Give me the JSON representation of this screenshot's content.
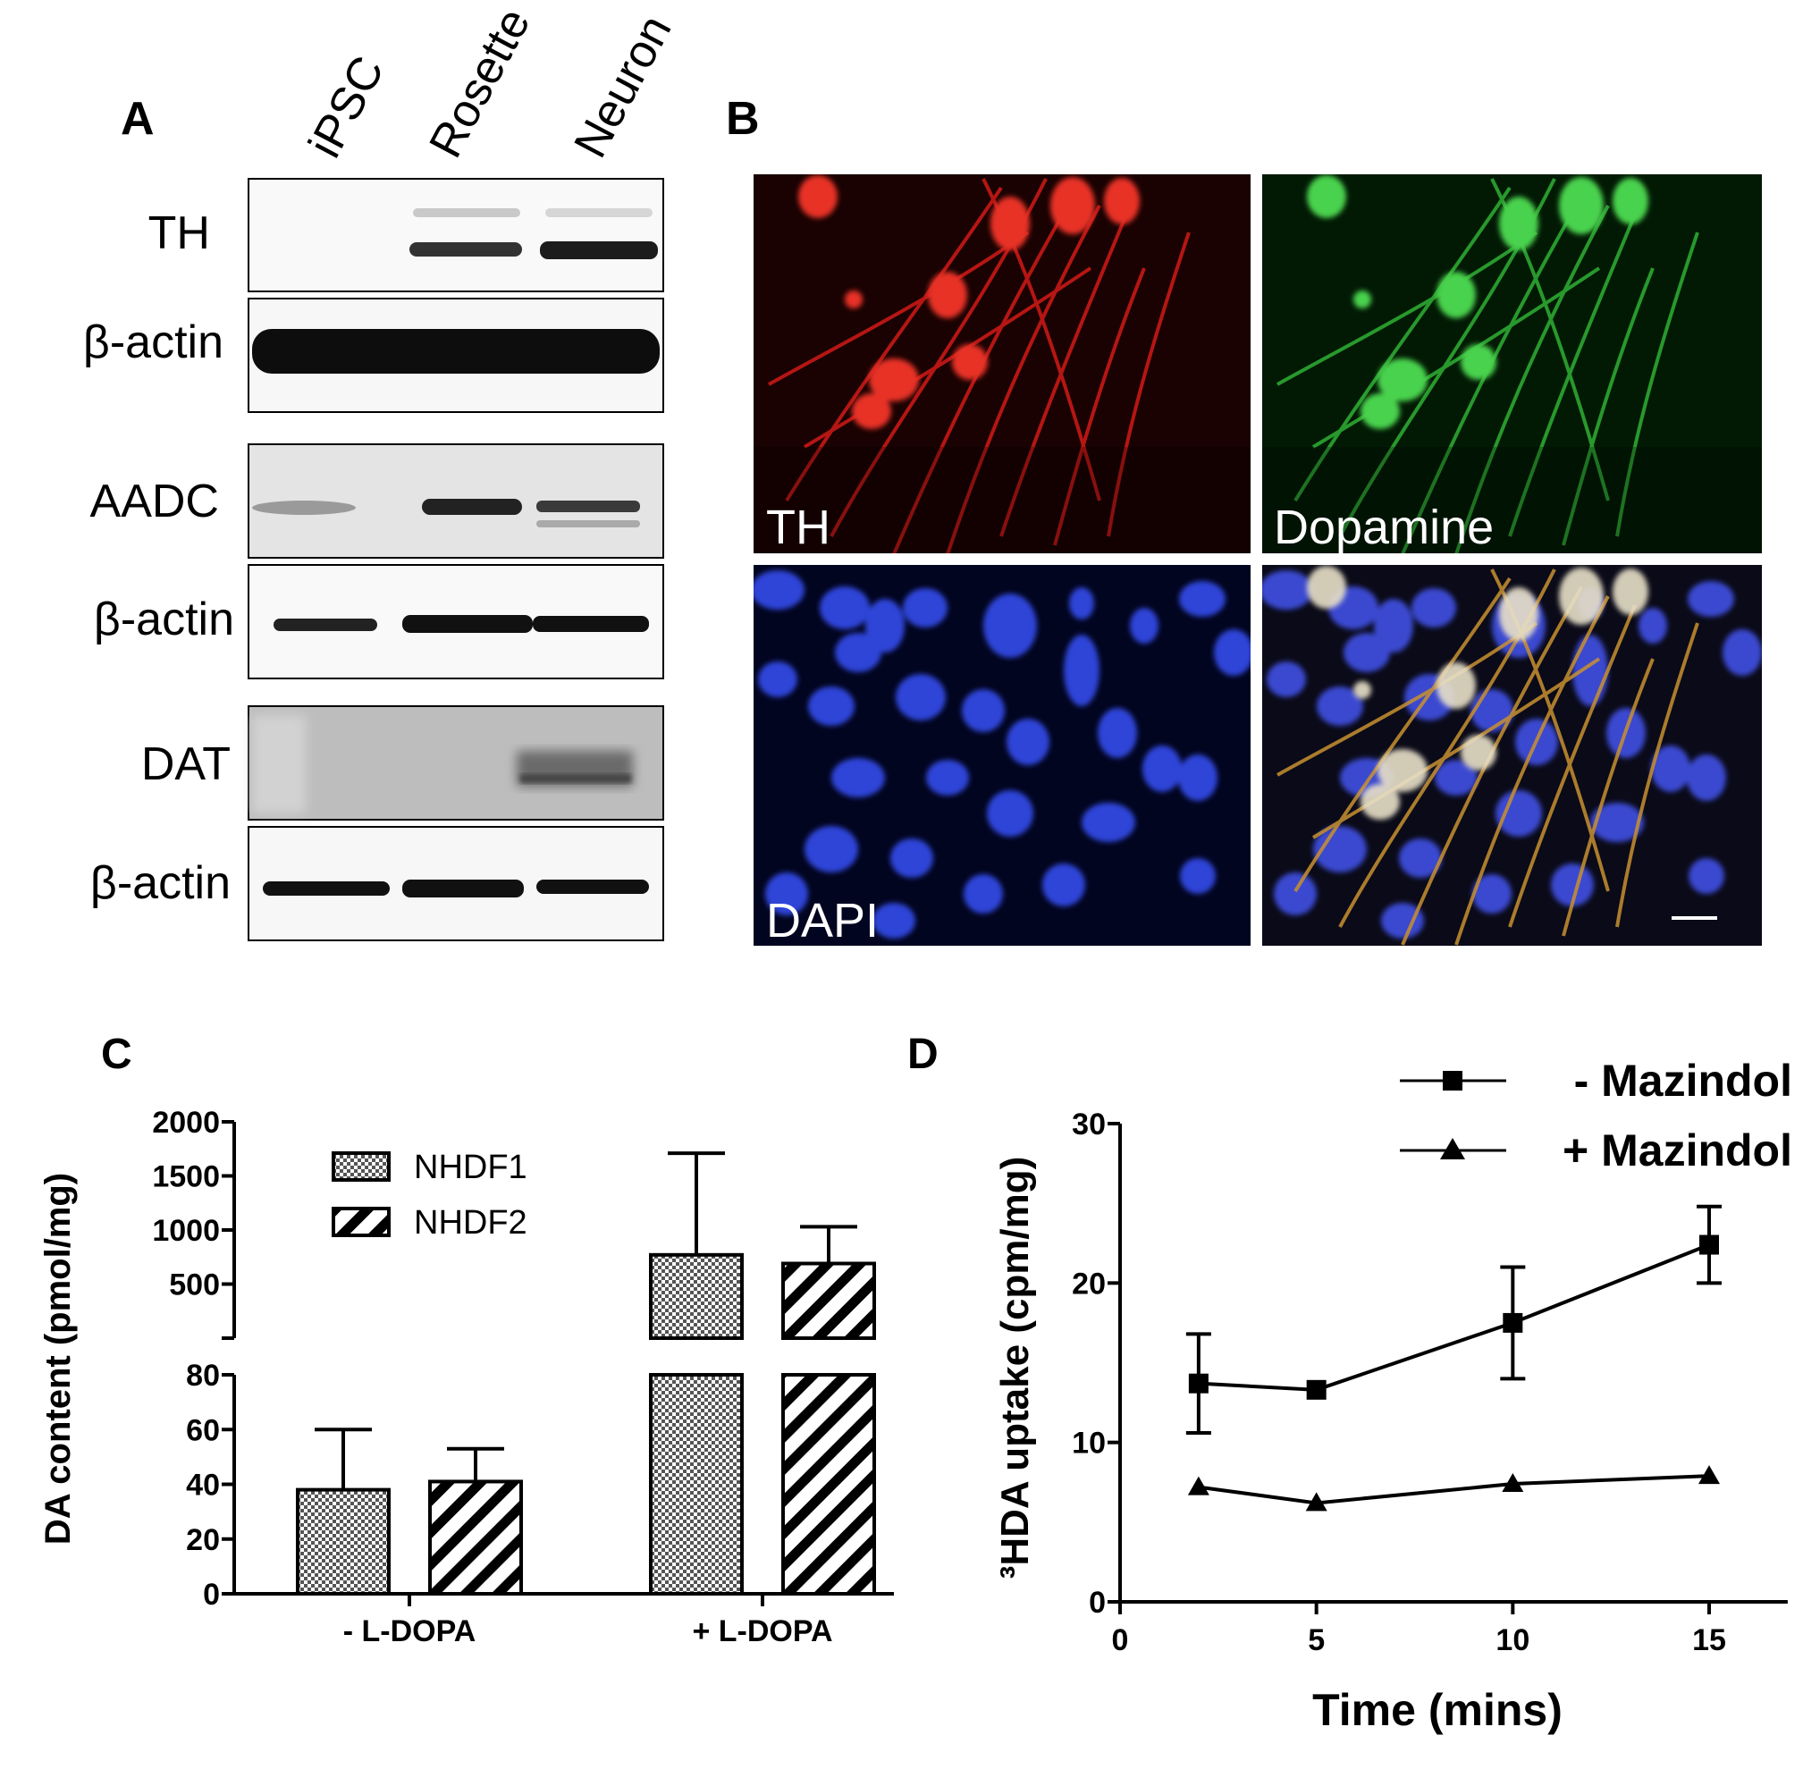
{
  "panels": {
    "a": {
      "label": "A",
      "lanes": [
        "iPSC",
        "Rosette",
        "Neuron"
      ],
      "blots": [
        {
          "label": "TH"
        },
        {
          "label": "β-actin"
        },
        {
          "label": "AADC"
        },
        {
          "label": "β-actin"
        },
        {
          "label": "DAT"
        },
        {
          "label": "β-actin"
        }
      ]
    },
    "b": {
      "label": "B",
      "images": [
        {
          "label": "TH",
          "channel_color": "#e8201c"
        },
        {
          "label": "Dopamine",
          "channel_color": "#35c23a"
        },
        {
          "label": "DAPI",
          "channel_color": "#2a3fd6"
        },
        {
          "label": "",
          "channel_color": "merge"
        }
      ]
    },
    "c": {
      "label": "C"
    },
    "d": {
      "label": "D"
    }
  },
  "chart_data": [
    {
      "type": "bar",
      "panel": "C",
      "ylabel": "DA content (pmol/mg)",
      "categories": [
        "- L-DOPA",
        "+ L-DOPA"
      ],
      "series": [
        {
          "name": "NHDF1",
          "pattern": "checker",
          "values": [
            38,
            770
          ],
          "errors": [
            22,
            940
          ]
        },
        {
          "name": "NHDF2",
          "pattern": "diagonal",
          "values": [
            41,
            690
          ],
          "errors": [
            12,
            340
          ]
        }
      ],
      "axis_break": true,
      "lower_ylim": [
        0,
        80
      ],
      "lower_yticks": [
        0,
        20,
        40,
        60,
        80
      ],
      "upper_ylim": [
        0,
        2000
      ],
      "upper_yticks": [
        500,
        1000,
        1500,
        2000
      ],
      "legend_position": "top-left"
    },
    {
      "type": "line",
      "panel": "D",
      "xlabel": "Time (mins)",
      "ylabel": "³HDA uptake (cpm/mg)",
      "xlim": [
        0,
        17
      ],
      "ylim": [
        0,
        30
      ],
      "xticks": [
        0,
        5,
        10,
        15
      ],
      "yticks": [
        0,
        10,
        20,
        30
      ],
      "series": [
        {
          "name": "- Mazindol",
          "marker": "square",
          "x": [
            2,
            5,
            10,
            15
          ],
          "y": [
            13.7,
            13.3,
            17.5,
            22.4
          ],
          "errors": [
            3.1,
            0,
            3.5,
            2.4
          ]
        },
        {
          "name": "+ Mazindol",
          "marker": "triangle",
          "x": [
            2,
            5,
            10,
            15
          ],
          "y": [
            7.2,
            6.2,
            7.4,
            7.9
          ],
          "errors": [
            0,
            0,
            0,
            0
          ]
        }
      ],
      "legend_position": "top-right"
    }
  ]
}
